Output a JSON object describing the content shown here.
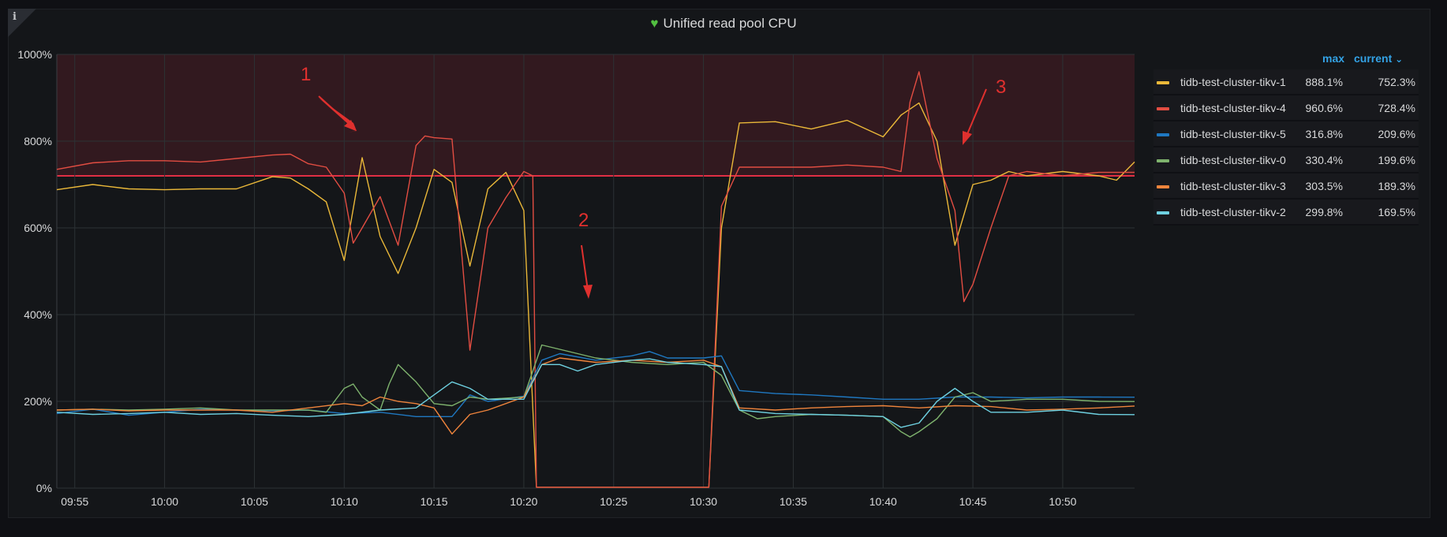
{
  "panel": {
    "title": "Unified read pool CPU",
    "info_glyph": "i",
    "heart_glyph": "♥",
    "status_icon": "heart-icon"
  },
  "legend": {
    "col_max": "max",
    "col_current": "current",
    "sort_glyph": "⌄"
  },
  "annotations": [
    {
      "label": "1",
      "color": "#e0302e"
    },
    {
      "label": "2",
      "color": "#e0302e"
    },
    {
      "label": "3",
      "color": "#e0302e"
    }
  ],
  "chart_data": {
    "type": "line",
    "title": "Unified read pool CPU",
    "y_unit": "%",
    "ylim": [
      0,
      1000
    ],
    "yticks": [
      "0%",
      "200%",
      "400%",
      "600%",
      "800%",
      "1000%"
    ],
    "xlim": [
      "09:54",
      "10:54"
    ],
    "xticks": [
      "09:55",
      "10:00",
      "10:05",
      "10:10",
      "10:15",
      "10:20",
      "10:25",
      "10:30",
      "10:35",
      "10:40",
      "10:45",
      "10:50"
    ],
    "grid": true,
    "legend_position": "right",
    "threshold": {
      "value": 720,
      "color": "#e02f44"
    },
    "series": [
      {
        "name": "tidb-test-cluster-tikv-1",
        "color": "#eab839",
        "max": "888.1%",
        "current": "752.3%",
        "points": [
          [
            "09:54",
            688
          ],
          [
            "09:56",
            700
          ],
          [
            "09:58",
            690
          ],
          [
            "10:00",
            688
          ],
          [
            "10:02",
            690
          ],
          [
            "10:04",
            690
          ],
          [
            "10:06",
            718
          ],
          [
            "10:07",
            715
          ],
          [
            "10:08",
            690
          ],
          [
            "10:09",
            660
          ],
          [
            "10:10",
            525
          ],
          [
            "10:11",
            762
          ],
          [
            "10:12",
            580
          ],
          [
            "10:13",
            495
          ],
          [
            "10:14",
            600
          ],
          [
            "10:15",
            735
          ],
          [
            "10:16",
            705
          ],
          [
            "10:17",
            512
          ],
          [
            "10:18",
            690
          ],
          [
            "10:19",
            728
          ],
          [
            "10:20",
            640
          ],
          [
            "10:20.7",
            2
          ],
          [
            "10:30.3",
            2
          ],
          [
            "10:31",
            600
          ],
          [
            "10:32",
            842
          ],
          [
            "10:34",
            845
          ],
          [
            "10:36",
            828
          ],
          [
            "10:38",
            848
          ],
          [
            "10:40",
            810
          ],
          [
            "10:41",
            860
          ],
          [
            "10:42",
            888
          ],
          [
            "10:43",
            800
          ],
          [
            "10:44",
            560
          ],
          [
            "10:45",
            700
          ],
          [
            "10:46",
            710
          ],
          [
            "10:47",
            730
          ],
          [
            "10:48",
            720
          ],
          [
            "10:50",
            730
          ],
          [
            "10:52",
            720
          ],
          [
            "10:53",
            710
          ],
          [
            "10:54",
            752
          ]
        ]
      },
      {
        "name": "tidb-test-cluster-tikv-4",
        "color": "#e24d42",
        "max": "960.6%",
        "current": "728.4%",
        "points": [
          [
            "09:54",
            735
          ],
          [
            "09:56",
            750
          ],
          [
            "09:58",
            755
          ],
          [
            "10:00",
            755
          ],
          [
            "10:02",
            752
          ],
          [
            "10:04",
            760
          ],
          [
            "10:06",
            768
          ],
          [
            "10:07",
            770
          ],
          [
            "10:08",
            748
          ],
          [
            "10:09",
            740
          ],
          [
            "10:10",
            680
          ],
          [
            "10:10.5",
            565
          ],
          [
            "10:11",
            600
          ],
          [
            "10:12",
            672
          ],
          [
            "10:13",
            560
          ],
          [
            "10:14",
            790
          ],
          [
            "10:14.5",
            812
          ],
          [
            "10:15",
            808
          ],
          [
            "10:16",
            805
          ],
          [
            "10:17",
            318
          ],
          [
            "10:18",
            600
          ],
          [
            "10:19",
            670
          ],
          [
            "10:20",
            730
          ],
          [
            "10:20.5",
            720
          ],
          [
            "10:20.7",
            2
          ],
          [
            "10:30.3",
            2
          ],
          [
            "10:31",
            650
          ],
          [
            "10:32",
            740
          ],
          [
            "10:34",
            740
          ],
          [
            "10:36",
            740
          ],
          [
            "10:38",
            745
          ],
          [
            "10:40",
            740
          ],
          [
            "10:41",
            730
          ],
          [
            "10:41.5",
            890
          ],
          [
            "10:42",
            960
          ],
          [
            "10:43",
            760
          ],
          [
            "10:44",
            640
          ],
          [
            "10:44.5",
            430
          ],
          [
            "10:45",
            470
          ],
          [
            "10:46",
            600
          ],
          [
            "10:47",
            720
          ],
          [
            "10:48",
            730
          ],
          [
            "10:50",
            720
          ],
          [
            "10:52",
            728
          ],
          [
            "10:54",
            728
          ]
        ]
      },
      {
        "name": "tidb-test-cluster-tikv-5",
        "color": "#1f78c1",
        "max": "316.8%",
        "current": "209.6%",
        "points": [
          [
            "09:54",
            172
          ],
          [
            "09:56",
            182
          ],
          [
            "09:58",
            168
          ],
          [
            "10:00",
            175
          ],
          [
            "10:02",
            182
          ],
          [
            "10:04",
            180
          ],
          [
            "10:06",
            178
          ],
          [
            "10:08",
            180
          ],
          [
            "10:10",
            172
          ],
          [
            "10:12",
            175
          ],
          [
            "10:14",
            165
          ],
          [
            "10:16",
            165
          ],
          [
            "10:17",
            215
          ],
          [
            "10:18",
            200
          ],
          [
            "10:20",
            212
          ],
          [
            "10:21",
            295
          ],
          [
            "10:22",
            310
          ],
          [
            "10:24",
            295
          ],
          [
            "10:26",
            305
          ],
          [
            "10:27",
            315
          ],
          [
            "10:28",
            300
          ],
          [
            "10:30",
            300
          ],
          [
            "10:31",
            305
          ],
          [
            "10:32",
            225
          ],
          [
            "10:34",
            218
          ],
          [
            "10:36",
            215
          ],
          [
            "10:38",
            210
          ],
          [
            "10:40",
            205
          ],
          [
            "10:42",
            205
          ],
          [
            "10:44",
            210
          ],
          [
            "10:46",
            210
          ],
          [
            "10:48",
            208
          ],
          [
            "10:50",
            210
          ],
          [
            "10:52",
            210
          ],
          [
            "10:54",
            209.6
          ]
        ]
      },
      {
        "name": "tidb-test-cluster-tikv-0",
        "color": "#7eb26d",
        "max": "330.4%",
        "current": "199.6%",
        "points": [
          [
            "09:54",
            180
          ],
          [
            "09:56",
            182
          ],
          [
            "09:58",
            180
          ],
          [
            "10:00",
            182
          ],
          [
            "10:02",
            185
          ],
          [
            "10:04",
            180
          ],
          [
            "10:06",
            180
          ],
          [
            "10:08",
            180
          ],
          [
            "10:09",
            175
          ],
          [
            "10:10",
            230
          ],
          [
            "10:10.5",
            240
          ],
          [
            "10:11",
            210
          ],
          [
            "10:12",
            180
          ],
          [
            "10:12.5",
            240
          ],
          [
            "10:13",
            285
          ],
          [
            "10:14",
            245
          ],
          [
            "10:15",
            195
          ],
          [
            "10:16",
            190
          ],
          [
            "10:17",
            210
          ],
          [
            "10:18",
            205
          ],
          [
            "10:20",
            210
          ],
          [
            "10:21",
            330
          ],
          [
            "10:22",
            320
          ],
          [
            "10:24",
            300
          ],
          [
            "10:26",
            290
          ],
          [
            "10:28",
            285
          ],
          [
            "10:30",
            290
          ],
          [
            "10:31",
            260
          ],
          [
            "10:32",
            180
          ],
          [
            "10:33",
            160
          ],
          [
            "10:34",
            165
          ],
          [
            "10:36",
            170
          ],
          [
            "10:38",
            168
          ],
          [
            "10:40",
            165
          ],
          [
            "10:41",
            130
          ],
          [
            "10:41.5",
            118
          ],
          [
            "10:42",
            130
          ],
          [
            "10:43",
            160
          ],
          [
            "10:44",
            210
          ],
          [
            "10:45",
            220
          ],
          [
            "10:46",
            200
          ],
          [
            "10:48",
            205
          ],
          [
            "10:50",
            205
          ],
          [
            "10:52",
            200
          ],
          [
            "10:54",
            199.6
          ]
        ]
      },
      {
        "name": "tidb-test-cluster-tikv-3",
        "color": "#ef843c",
        "max": "303.5%",
        "current": "189.3%",
        "points": [
          [
            "09:54",
            180
          ],
          [
            "09:56",
            182
          ],
          [
            "09:58",
            178
          ],
          [
            "10:00",
            180
          ],
          [
            "10:02",
            180
          ],
          [
            "10:04",
            180
          ],
          [
            "10:06",
            175
          ],
          [
            "10:08",
            185
          ],
          [
            "10:10",
            195
          ],
          [
            "10:11",
            190
          ],
          [
            "10:12",
            210
          ],
          [
            "10:13",
            200
          ],
          [
            "10:14",
            195
          ],
          [
            "10:15",
            185
          ],
          [
            "10:16",
            125
          ],
          [
            "10:17",
            170
          ],
          [
            "10:18",
            180
          ],
          [
            "10:20",
            210
          ],
          [
            "10:21",
            285
          ],
          [
            "10:22",
            300
          ],
          [
            "10:24",
            290
          ],
          [
            "10:26",
            295
          ],
          [
            "10:28",
            290
          ],
          [
            "10:30",
            295
          ],
          [
            "10:31",
            280
          ],
          [
            "10:32",
            185
          ],
          [
            "10:34",
            180
          ],
          [
            "10:36",
            185
          ],
          [
            "10:38",
            188
          ],
          [
            "10:40",
            190
          ],
          [
            "10:42",
            185
          ],
          [
            "10:44",
            190
          ],
          [
            "10:46",
            188
          ],
          [
            "10:48",
            180
          ],
          [
            "10:50",
            182
          ],
          [
            "10:52",
            185
          ],
          [
            "10:54",
            189.3
          ]
        ]
      },
      {
        "name": "tidb-test-cluster-tikv-2",
        "color": "#6ed0e0",
        "max": "299.8%",
        "current": "169.5%",
        "points": [
          [
            "09:54",
            175
          ],
          [
            "09:56",
            170
          ],
          [
            "09:58",
            172
          ],
          [
            "10:00",
            175
          ],
          [
            "10:02",
            170
          ],
          [
            "10:04",
            172
          ],
          [
            "10:06",
            168
          ],
          [
            "10:08",
            165
          ],
          [
            "10:10",
            170
          ],
          [
            "10:12",
            180
          ],
          [
            "10:14",
            185
          ],
          [
            "10:16",
            245
          ],
          [
            "10:17",
            230
          ],
          [
            "10:18",
            205
          ],
          [
            "10:20",
            205
          ],
          [
            "10:21",
            285
          ],
          [
            "10:22",
            285
          ],
          [
            "10:23",
            270
          ],
          [
            "10:24",
            285
          ],
          [
            "10:26",
            295
          ],
          [
            "10:27",
            298
          ],
          [
            "10:28",
            290
          ],
          [
            "10:30",
            285
          ],
          [
            "10:31",
            280
          ],
          [
            "10:32",
            180
          ],
          [
            "10:34",
            172
          ],
          [
            "10:36",
            170
          ],
          [
            "10:38",
            168
          ],
          [
            "10:40",
            165
          ],
          [
            "10:41",
            140
          ],
          [
            "10:42",
            150
          ],
          [
            "10:43",
            200
          ],
          [
            "10:44",
            230
          ],
          [
            "10:45",
            200
          ],
          [
            "10:46",
            175
          ],
          [
            "10:48",
            175
          ],
          [
            "10:50",
            180
          ],
          [
            "10:52",
            170
          ],
          [
            "10:54",
            169.5
          ]
        ]
      }
    ]
  }
}
